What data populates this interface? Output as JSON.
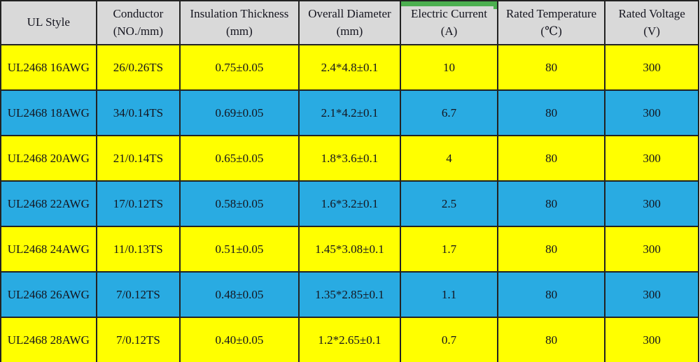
{
  "table": {
    "columns": [
      {
        "label": "UL Style",
        "sub": ""
      },
      {
        "label": "Conductor",
        "sub": "(NO./mm)"
      },
      {
        "label": "Insulation Thickness",
        "sub": "(mm)"
      },
      {
        "label": "Overall Diameter",
        "sub": "(mm)"
      },
      {
        "label": "Electric Current",
        "sub": "(A)",
        "highlighted": true
      },
      {
        "label": "Rated Temperature",
        "sub": "(℃)"
      },
      {
        "label": "Rated Voltage",
        "sub": "(V)"
      }
    ],
    "highlight_column_index": 4,
    "rows": [
      [
        "UL2468 16AWG",
        "26/0.26TS",
        "0.75±0.05",
        "2.4*4.8±0.1",
        "10",
        "80",
        "300"
      ],
      [
        "UL2468 18AWG",
        "34/0.14TS",
        "0.69±0.05",
        "2.1*4.2±0.1",
        "6.7",
        "80",
        "300"
      ],
      [
        "UL2468 20AWG",
        "21/0.14TS",
        "0.65±0.05",
        "1.8*3.6±0.1",
        "4",
        "80",
        "300"
      ],
      [
        "UL2468 22AWG",
        "17/0.12TS",
        "0.58±0.05",
        "1.6*3.2±0.1",
        "2.5",
        "80",
        "300"
      ],
      [
        "UL2468 24AWG",
        "11/0.13TS",
        "0.51±0.05",
        "1.45*3.08±0.1",
        "1.7",
        "80",
        "300"
      ],
      [
        "UL2468 26AWG",
        "7/0.12TS",
        "0.48±0.05",
        "1.35*2.85±0.1",
        "1.1",
        "80",
        "300"
      ],
      [
        "UL2468 28AWG",
        "7/0.12TS",
        "0.40±0.05",
        "1.2*2.65±0.1",
        "0.7",
        "80",
        "300"
      ]
    ]
  },
  "colors": {
    "header_bg": "#d9d9d9",
    "row_yellow": "#ffff00",
    "row_blue": "#29abe2",
    "highlight_green": "#4caf50",
    "border": "#222222",
    "text": "#14141e"
  },
  "chart_data": {
    "type": "table",
    "title": "UL2468 wire specification table",
    "columns": [
      "UL Style",
      "Conductor (NO./mm)",
      "Insulation Thickness (mm)",
      "Overall Diameter (mm)",
      "Electric Current (A)",
      "Rated Temperature (℃)",
      "Rated Voltage (V)"
    ],
    "rows": [
      [
        "UL2468 16AWG",
        "26/0.26TS",
        "0.75±0.05",
        "2.4*4.8±0.1",
        "10",
        "80",
        "300"
      ],
      [
        "UL2468 18AWG",
        "34/0.14TS",
        "0.69±0.05",
        "2.1*4.2±0.1",
        "6.7",
        "80",
        "300"
      ],
      [
        "UL2468 20AWG",
        "21/0.14TS",
        "0.65±0.05",
        "1.8*3.6±0.1",
        "4",
        "80",
        "300"
      ],
      [
        "UL2468 22AWG",
        "17/0.12TS",
        "0.58±0.05",
        "1.6*3.2±0.1",
        "2.5",
        "80",
        "300"
      ],
      [
        "UL2468 24AWG",
        "11/0.13TS",
        "0.51±0.05",
        "1.45*3.08±0.1",
        "1.7",
        "80",
        "300"
      ],
      [
        "UL2468 26AWG",
        "7/0.12TS",
        "0.48±0.05",
        "1.35*2.85±0.1",
        "1.1",
        "80",
        "300"
      ],
      [
        "UL2468 28AWG",
        "7/0.12TS",
        "0.40±0.05",
        "1.2*2.65±0.1",
        "0.7",
        "80",
        "300"
      ]
    ],
    "electric_current_values": [
      10,
      6.7,
      4,
      2.5,
      1.7,
      1.1,
      0.7
    ],
    "rated_temperature_c": 80,
    "rated_voltage_v": 300
  }
}
